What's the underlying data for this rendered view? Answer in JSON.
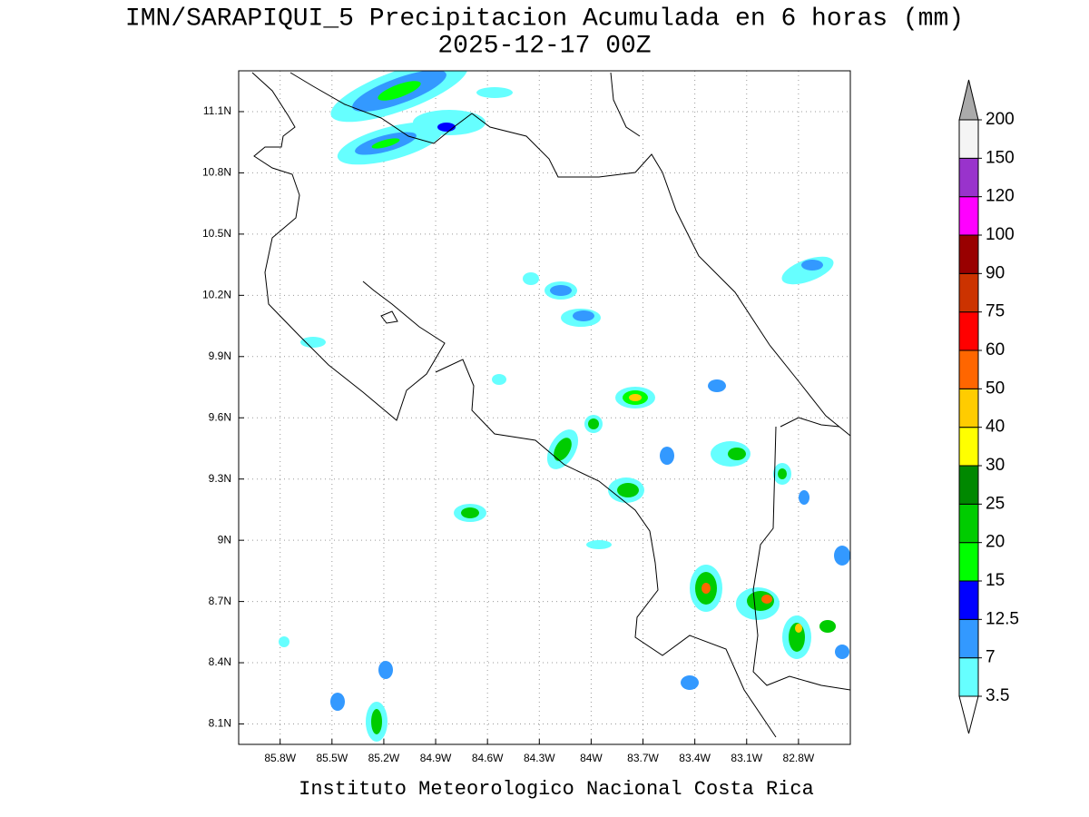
{
  "title": "IMN/SARAPIQUI_5 Precipitacion Acumulada en 6 horas (mm)",
  "subtitle": "2025-12-17 00Z",
  "footer": "Instituto Meteorologico Nacional Costa Rica",
  "map": {
    "type": "contour-map",
    "xlim": [
      -86.04,
      -82.5
    ],
    "ylim": [
      8.0,
      11.3
    ],
    "xticks": [
      {
        "value": -85.8,
        "label": "85.8W"
      },
      {
        "value": -85.5,
        "label": "85.5W"
      },
      {
        "value": -85.2,
        "label": "85.2W"
      },
      {
        "value": -84.9,
        "label": "84.9W"
      },
      {
        "value": -84.6,
        "label": "84.6W"
      },
      {
        "value": -84.3,
        "label": "84.3W"
      },
      {
        "value": -84.0,
        "label": "84W"
      },
      {
        "value": -83.7,
        "label": "83.7W"
      },
      {
        "value": -83.4,
        "label": "83.4W"
      },
      {
        "value": -83.1,
        "label": "83.1W"
      },
      {
        "value": -82.8,
        "label": "82.8W"
      }
    ],
    "yticks": [
      {
        "value": 8.1,
        "label": "8.1N"
      },
      {
        "value": 8.4,
        "label": "8.4N"
      },
      {
        "value": 8.7,
        "label": "8.7N"
      },
      {
        "value": 9.0,
        "label": "9N"
      },
      {
        "value": 9.3,
        "label": "9.3N"
      },
      {
        "value": 9.6,
        "label": "9.6N"
      },
      {
        "value": 9.9,
        "label": "9.9N"
      },
      {
        "value": 10.2,
        "label": "10.2N"
      },
      {
        "value": 10.5,
        "label": "10.5N"
      },
      {
        "value": 10.8,
        "label": "10.8N"
      },
      {
        "value": 11.1,
        "label": "11.1N"
      }
    ],
    "grid": true
  },
  "colorbar": {
    "levels": [
      3.5,
      7,
      12.5,
      15,
      20,
      25,
      30,
      40,
      50,
      60,
      75,
      90,
      100,
      120,
      150,
      200
    ],
    "colors": [
      "#66ffff",
      "#3399ff",
      "#0000ff",
      "#00ff00",
      "#00cc00",
      "#008800",
      "#ffff00",
      "#ffcc00",
      "#ff6600",
      "#ff0000",
      "#cc3300",
      "#990000",
      "#ff00ff",
      "#9933cc",
      "#f4f4f4"
    ],
    "below_color": "#ffffff",
    "above_color": "#aaaaaa"
  }
}
